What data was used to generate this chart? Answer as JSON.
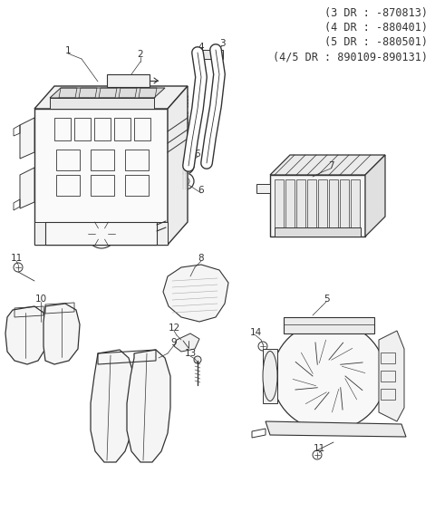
{
  "bg_color": "#ffffff",
  "line_color": "#333333",
  "text_color": "#333333",
  "header_lines": [
    "(3 DR : -870813)",
    "(4 DR : -880401)",
    "(5 DR : -880501)",
    "(4/5 DR : 890109-890131)"
  ],
  "header_fontsize": 8.5,
  "label_fontsize": 7.5
}
